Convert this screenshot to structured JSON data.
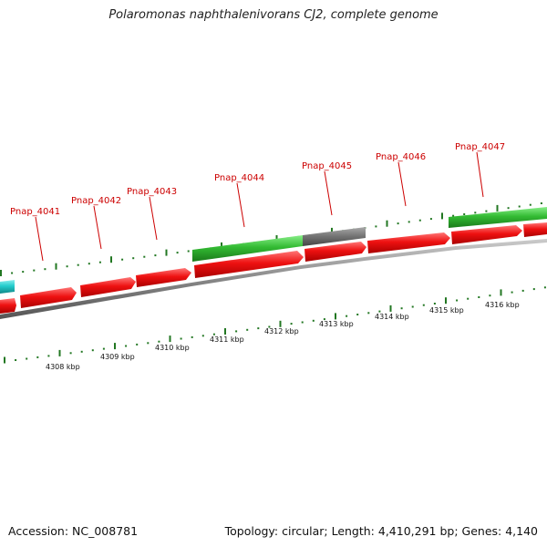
{
  "title": "Polaromonas naphthalenivorans CJ2, complete genome",
  "footer": {
    "accession": "Accession: NC_008781",
    "summary": "Topology: circular; Length: 4,410,291 bp; Genes: 4,140"
  },
  "genes": [
    {
      "id": "Pnap_4041"
    },
    {
      "id": "Pnap_4042"
    },
    {
      "id": "Pnap_4043"
    },
    {
      "id": "Pnap_4044"
    },
    {
      "id": "Pnap_4045"
    },
    {
      "id": "Pnap_4046"
    },
    {
      "id": "Pnap_4047"
    }
  ],
  "scale_ticks": [
    "4308 kbp",
    "4309 kbp",
    "4310 kbp",
    "4311 kbp",
    "4312 kbp",
    "4313 kbp",
    "4314 kbp",
    "4315 kbp",
    "4316 kbp"
  ],
  "colors": {
    "cds": "#ee1111",
    "rna_green": "#33bb33",
    "rna_gray": "#777777",
    "cyan": "#22cccc",
    "tick_green": "#227722",
    "label_red": "#cc0000",
    "backbone": "#888888"
  }
}
